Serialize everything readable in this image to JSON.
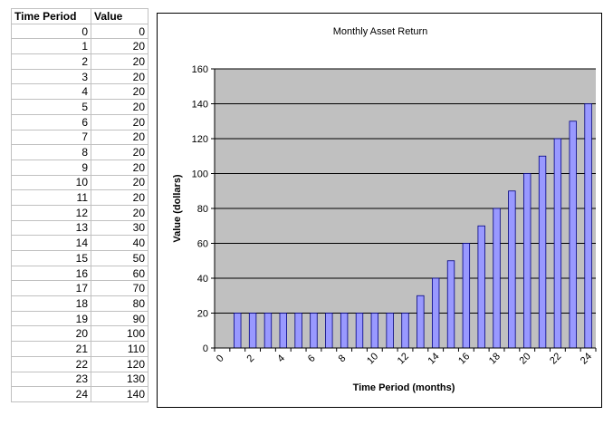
{
  "table": {
    "headers": [
      "Time Period",
      "Value"
    ],
    "rows": [
      [
        "0",
        "0"
      ],
      [
        "1",
        "20"
      ],
      [
        "2",
        "20"
      ],
      [
        "3",
        "20"
      ],
      [
        "4",
        "20"
      ],
      [
        "5",
        "20"
      ],
      [
        "6",
        "20"
      ],
      [
        "7",
        "20"
      ],
      [
        "8",
        "20"
      ],
      [
        "9",
        "20"
      ],
      [
        "10",
        "20"
      ],
      [
        "11",
        "20"
      ],
      [
        "12",
        "20"
      ],
      [
        "13",
        "30"
      ],
      [
        "14",
        "40"
      ],
      [
        "15",
        "50"
      ],
      [
        "16",
        "60"
      ],
      [
        "17",
        "70"
      ],
      [
        "18",
        "80"
      ],
      [
        "19",
        "90"
      ],
      [
        "20",
        "100"
      ],
      [
        "21",
        "110"
      ],
      [
        "22",
        "120"
      ],
      [
        "23",
        "130"
      ],
      [
        "24",
        "140"
      ]
    ]
  },
  "chart_data": {
    "type": "bar",
    "title": "Monthly Asset Return",
    "xlabel": "Time Period (months)",
    "ylabel": "Value (dollars)",
    "categories": [
      0,
      1,
      2,
      3,
      4,
      5,
      6,
      7,
      8,
      9,
      10,
      11,
      12,
      13,
      14,
      15,
      16,
      17,
      18,
      19,
      20,
      21,
      22,
      23,
      24
    ],
    "values": [
      0,
      20,
      20,
      20,
      20,
      20,
      20,
      20,
      20,
      20,
      20,
      20,
      20,
      30,
      40,
      50,
      60,
      70,
      80,
      90,
      100,
      110,
      120,
      130,
      140
    ],
    "ylim": [
      0,
      160
    ],
    "yticks": [
      0,
      20,
      40,
      60,
      80,
      100,
      120,
      140,
      160
    ],
    "xticks": [
      0,
      2,
      4,
      6,
      8,
      10,
      12,
      14,
      16,
      18,
      20,
      22,
      24
    ],
    "grid": true,
    "legend": "none",
    "colors": {
      "bar_fill": "#9999ff",
      "bar_stroke": "#000080",
      "plot_bg": "#c0c0c0",
      "gridline": "#000000"
    }
  }
}
